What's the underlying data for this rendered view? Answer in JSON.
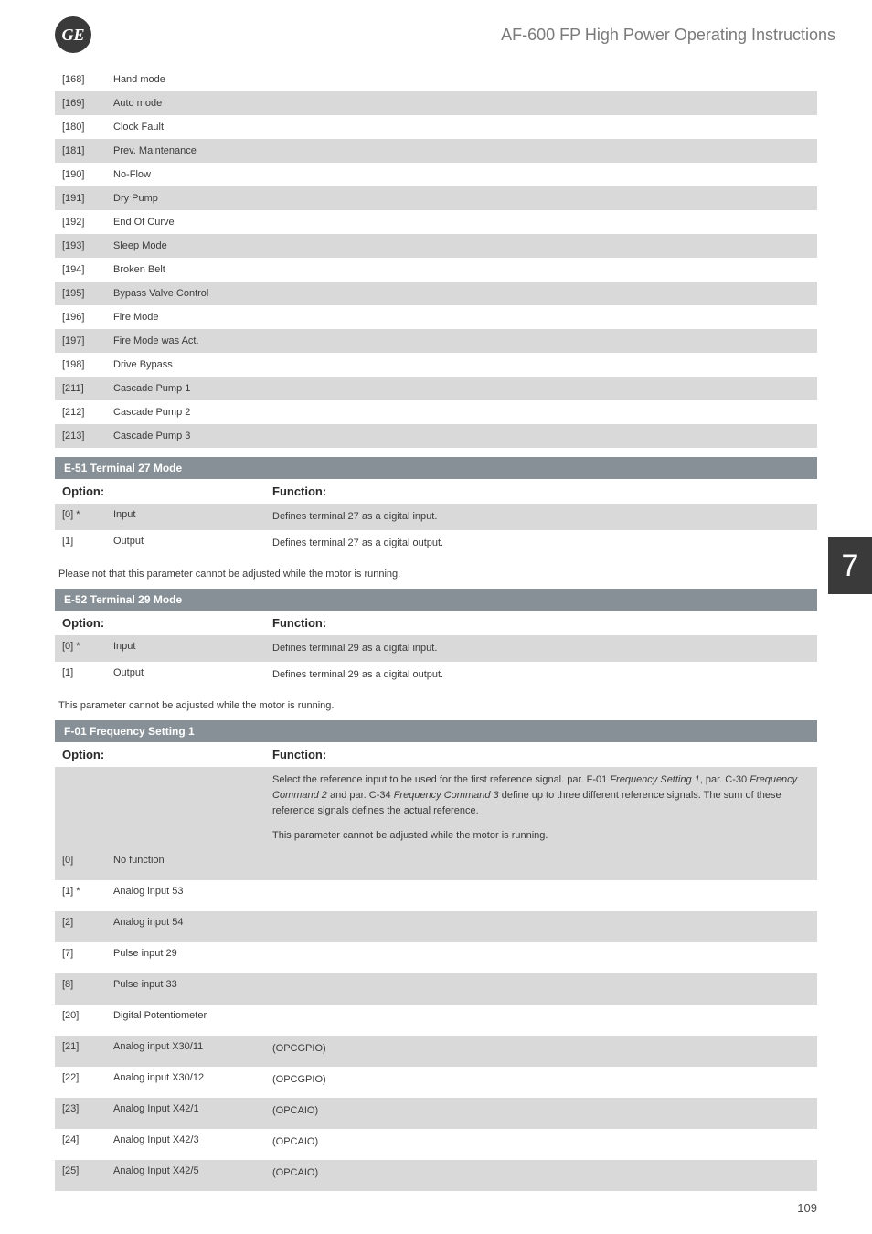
{
  "header": {
    "logo_text": "GE",
    "title": "AF-600 FP High Power Operating Instructions"
  },
  "colors": {
    "row_alt_bg": "#d9d9d9",
    "section_bar_bg": "#879096",
    "section_bar_text": "#ffffff",
    "page_bg": "#ffffff",
    "text": "#3a3a3a",
    "header_title": "#7a7a7a",
    "tab_bg": "#3a3a3a"
  },
  "mode_list": [
    {
      "code": "[168]",
      "label": "Hand mode",
      "alt": false
    },
    {
      "code": "[169]",
      "label": "Auto mode",
      "alt": true
    },
    {
      "code": "[180]",
      "label": "Clock Fault",
      "alt": false
    },
    {
      "code": "[181]",
      "label": "Prev. Maintenance",
      "alt": true
    },
    {
      "code": "[190]",
      "label": "No-Flow",
      "alt": false
    },
    {
      "code": "[191]",
      "label": "Dry Pump",
      "alt": true
    },
    {
      "code": "[192]",
      "label": "End Of Curve",
      "alt": false
    },
    {
      "code": "[193]",
      "label": "Sleep Mode",
      "alt": true
    },
    {
      "code": "[194]",
      "label": "Broken Belt",
      "alt": false
    },
    {
      "code": "[195]",
      "label": "Bypass Valve Control",
      "alt": true
    },
    {
      "code": "[196]",
      "label": "Fire Mode",
      "alt": false
    },
    {
      "code": "[197]",
      "label": "Fire Mode was Act.",
      "alt": true
    },
    {
      "code": "[198]",
      "label": "Drive Bypass",
      "alt": false
    },
    {
      "code": "[211]",
      "label": "Cascade Pump 1",
      "alt": true
    },
    {
      "code": "[212]",
      "label": "Cascade Pump 2",
      "alt": false
    },
    {
      "code": "[213]",
      "label": "Cascade Pump 3",
      "alt": true
    }
  ],
  "e51": {
    "title": "E-51  Terminal 27 Mode",
    "option_hdr": "Option:",
    "function_hdr": "Function:",
    "rows": [
      {
        "code": "[0] *",
        "label": "Input",
        "func": "Defines terminal 27 as a digital input.",
        "alt": true
      },
      {
        "code": "[1]",
        "label": "Output",
        "func": "Defines terminal 27 as a digital output.",
        "alt": false
      }
    ],
    "note": "Please not that this parameter cannot be adjusted while the motor is running."
  },
  "e52": {
    "title": "E-52  Terminal 29 Mode",
    "option_hdr": "Option:",
    "function_hdr": "Function:",
    "rows": [
      {
        "code": "[0] *",
        "label": "Input",
        "func": "Defines terminal 29 as a digital input.",
        "alt": true
      },
      {
        "code": "[1]",
        "label": "Output",
        "func": "Defines terminal 29 as a digital output.",
        "alt": false
      }
    ],
    "note": "This parameter cannot be adjusted while the motor is running."
  },
  "f01": {
    "title": "F-01  Frequency Setting 1",
    "option_hdr": "Option:",
    "function_hdr": "Function:",
    "desc_line1": "Select the reference input to be used for the first reference signal. par. F-01 ",
    "desc_em1": "Frequency Setting 1",
    "desc_line1b": ", par. C-30 ",
    "desc_em2": "Frequency Command 2",
    "desc_line2": " and par. C-34 ",
    "desc_em3": "Frequency Command 3",
    "desc_line2b": " define up to three different reference signals. The sum of these reference signals defines the actual reference.",
    "desc_line3": "This parameter cannot be adjusted while the motor is running.",
    "rows": [
      {
        "code": "[0]",
        "label": "No function",
        "func": "",
        "alt": true
      },
      {
        "code": "[1] *",
        "label": "Analog input 53",
        "func": "",
        "alt": false
      },
      {
        "code": "[2]",
        "label": "Analog input 54",
        "func": "",
        "alt": true
      },
      {
        "code": "[7]",
        "label": "Pulse input 29",
        "func": "",
        "alt": false
      },
      {
        "code": "[8]",
        "label": "Pulse input 33",
        "func": "",
        "alt": true
      },
      {
        "code": "[20]",
        "label": "Digital Potentiometer",
        "func": "",
        "alt": false
      },
      {
        "code": "[21]",
        "label": "Analog input X30/11",
        "func": "(OPCGPIO)",
        "alt": true
      },
      {
        "code": "[22]",
        "label": "Analog input X30/12",
        "func": "(OPCGPIO)",
        "alt": false
      },
      {
        "code": "[23]",
        "label": "Analog Input X42/1",
        "func": "(OPCAIO)",
        "alt": true
      },
      {
        "code": "[24]",
        "label": "Analog Input X42/3",
        "func": "(OPCAIO)",
        "alt": false
      },
      {
        "code": "[25]",
        "label": "Analog Input X42/5",
        "func": "(OPCAIO)",
        "alt": true
      }
    ]
  },
  "side_tab": "7",
  "page_number": "109"
}
